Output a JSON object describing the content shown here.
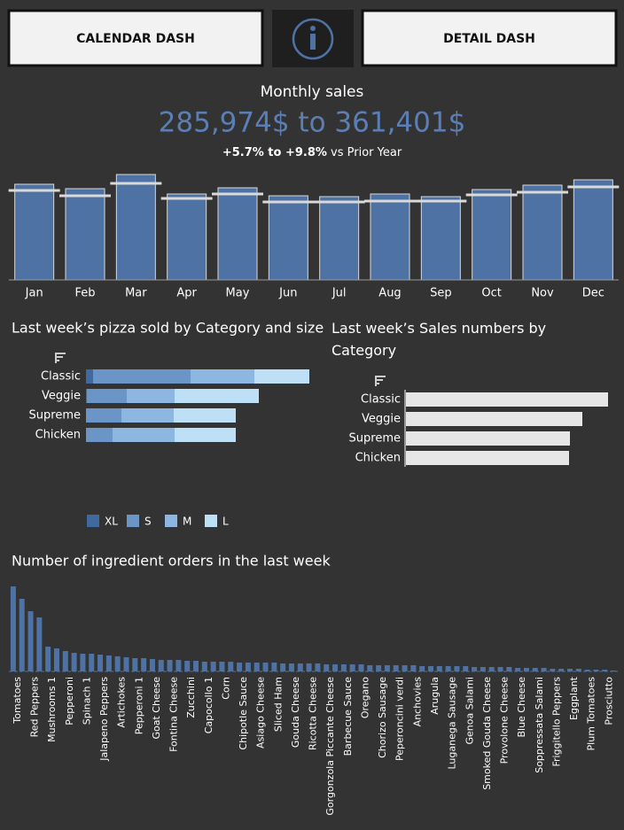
{
  "header": {
    "buttons": [
      "CALENDAR DASH",
      "DETAIL DASH"
    ]
  },
  "kpi": {
    "title": "Monthly sales",
    "value": "285,974$ to 361,401$",
    "change": "+5.7% to +9.8%",
    "change_suffix": "vs Prior Year"
  },
  "chart_data": [
    {
      "type": "bar",
      "categories": [
        "Jan",
        "Feb",
        "Mar",
        "Apr",
        "May",
        "Jun",
        "Jul",
        "Aug",
        "Sep",
        "Oct",
        "Nov",
        "Dec"
      ],
      "series": [
        {
          "color": "#4e72a3",
          "values": [
            108,
            103,
            119,
            97,
            104,
            95,
            94,
            97,
            94,
            102,
            107,
            113
          ]
        },
        {
          "color": "#d9d9d9",
          "values": [
            101,
            95,
            109,
            92,
            97,
            88,
            88,
            89,
            89,
            96,
            99,
            105
          ],
          "mark": "reference-line"
        }
      ],
      "ylim": [
        0,
        130
      ]
    },
    {
      "type": "stacked-hbar",
      "title": "Last week’s pizza sold by Category and size",
      "categories": [
        "Classic",
        "Veggie",
        "Supreme",
        "Chicken"
      ],
      "series": [
        {
          "name": "XL",
          "color": "#3f6a9e",
          "values": [
            8,
            1,
            0,
            0
          ]
        },
        {
          "name": "S",
          "color": "#6b95c6",
          "values": [
            110,
            45,
            40,
            30
          ]
        },
        {
          "name": "M",
          "color": "#8db7e0",
          "values": [
            72,
            54,
            59,
            70
          ]
        },
        {
          "name": "L",
          "color": "#bde0f7",
          "values": [
            62,
            95,
            70,
            69
          ]
        }
      ],
      "xlim": [
        0,
        260
      ],
      "legend": "bottom"
    },
    {
      "type": "hbar",
      "title": "Last week’s  Sales numbers by Category",
      "categories": [
        "Classic",
        "Veggie",
        "Supreme",
        "Chicken"
      ],
      "values": [
        228,
        199,
        185,
        184
      ],
      "color": "#e6e6e6",
      "xlim": [
        0,
        235
      ]
    },
    {
      "type": "bar",
      "title": "Number of ingredient orders in the last week",
      "categories": [
        "Tomatoes",
        null,
        "Red Peppers",
        null,
        "Mushrooms 1",
        null,
        "Pepperoni",
        null,
        "Spinach 1",
        null,
        "Jalapeno Peppers",
        null,
        "Artichokes",
        null,
        "Pepperoni 1",
        null,
        "Goat Cheese",
        null,
        "Fontina Cheese",
        null,
        "Zucchini",
        null,
        "Capocollo 1",
        null,
        "Corn",
        null,
        "Chipotle Sauce",
        null,
        "Asiago Cheese",
        null,
        "Sliced Ham",
        null,
        "Gouda Cheese",
        null,
        "Ricotta Cheese",
        null,
        "Gorgonzola Piccante Cheese",
        null,
        "Barbecue Sauce",
        null,
        "Oregano",
        null,
        "Chorizo Sausage",
        null,
        "Peperoncini verdi",
        null,
        "Anchovies",
        null,
        "Arugula",
        null,
        "Luganega Sausage",
        null,
        "Genoa Salami",
        null,
        "Smoked Gouda Cheese",
        null,
        "Provolone Cheese",
        null,
        "Blue Cheese",
        null,
        "Soppressata Salami",
        null,
        "Friggitello Peppers",
        null,
        "Eggplant",
        null,
        "Plum Tomatoes",
        null,
        "Prosciutto",
        null
      ],
      "values": [
        96,
        82,
        68,
        61,
        28,
        26,
        23,
        21,
        20,
        20,
        19,
        18,
        17,
        16,
        15,
        15,
        14,
        13,
        13,
        13,
        12,
        12,
        11,
        11,
        11,
        11,
        10,
        10,
        10,
        10,
        10,
        9,
        9,
        9,
        9,
        9,
        8,
        8,
        8,
        8,
        8,
        7,
        7,
        7,
        7,
        7,
        7,
        6,
        6,
        6,
        6,
        6,
        6,
        5,
        5,
        5,
        5,
        5,
        4,
        4,
        4,
        4,
        3,
        3,
        3,
        3,
        2,
        2,
        2,
        1
      ],
      "color": "#4e72a3",
      "ylim": [
        0,
        100
      ]
    }
  ]
}
